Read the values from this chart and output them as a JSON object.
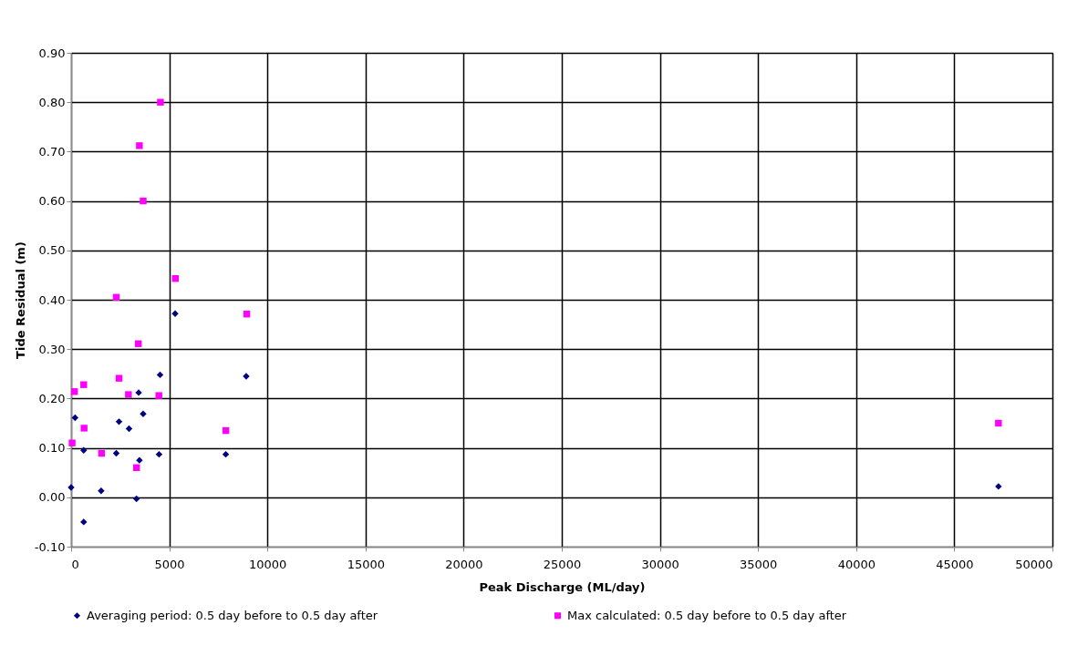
{
  "chart_data": {
    "type": "scatter",
    "xlabel": "Peak Discharge (ML/day)",
    "ylabel": "Tide Residual (m)",
    "xlim": [
      0,
      50000
    ],
    "xticks": [
      0,
      5000,
      10000,
      15000,
      20000,
      25000,
      30000,
      35000,
      40000,
      45000,
      50000
    ],
    "ylim": [
      -0.1,
      0.9
    ],
    "yticks": [
      {
        "value": -0.1,
        "label": "-0.10"
      },
      {
        "value": 0,
        "label": "0.00"
      },
      {
        "value": 0.1,
        "label": "0.10"
      },
      {
        "value": 0.2,
        "label": "0.20"
      },
      {
        "value": 0.3,
        "label": "0.30"
      },
      {
        "value": 0.4,
        "label": "0.40"
      },
      {
        "value": 0.5,
        "label": "0.50"
      },
      {
        "value": 0.6,
        "label": "0.60"
      },
      {
        "value": 0.7,
        "label": "0.70"
      },
      {
        "value": 0.8,
        "label": "0.80"
      },
      {
        "value": 0.9,
        "label": "0.90"
      }
    ],
    "grid": true,
    "legend": "bottom",
    "series": [
      {
        "name": "Averaging period: 0.5 day before to 0.5 day after",
        "color": "#000080",
        "marker": "diamond",
        "x": [
          5300,
          8920,
          4530,
          3440,
          200,
          2440,
          3670,
          2950,
          640,
          2300,
          4480,
          7880,
          3480,
          0,
          1530,
          3330,
          640,
          47250
        ],
        "values": [
          0.372,
          0.245,
          0.248,
          0.212,
          0.161,
          0.153,
          0.169,
          0.139,
          0.095,
          0.089,
          0.087,
          0.087,
          0.075,
          0.02,
          0.013,
          -0.003,
          -0.05,
          0.022
        ]
      },
      {
        "name": "Max calculated: 0.5 day before to 0.5 day after",
        "color": "#ff00ff",
        "marker": "square",
        "x": [
          4550,
          3480,
          3670,
          5310,
          2300,
          8950,
          3420,
          2440,
          640,
          170,
          2920,
          4470,
          660,
          7880,
          50,
          1550,
          3330,
          47250
        ],
        "values": [
          0.8,
          0.712,
          0.6,
          0.443,
          0.405,
          0.371,
          0.311,
          0.241,
          0.228,
          0.214,
          0.208,
          0.206,
          0.14,
          0.135,
          0.11,
          0.089,
          0.06,
          0.15
        ]
      }
    ]
  }
}
